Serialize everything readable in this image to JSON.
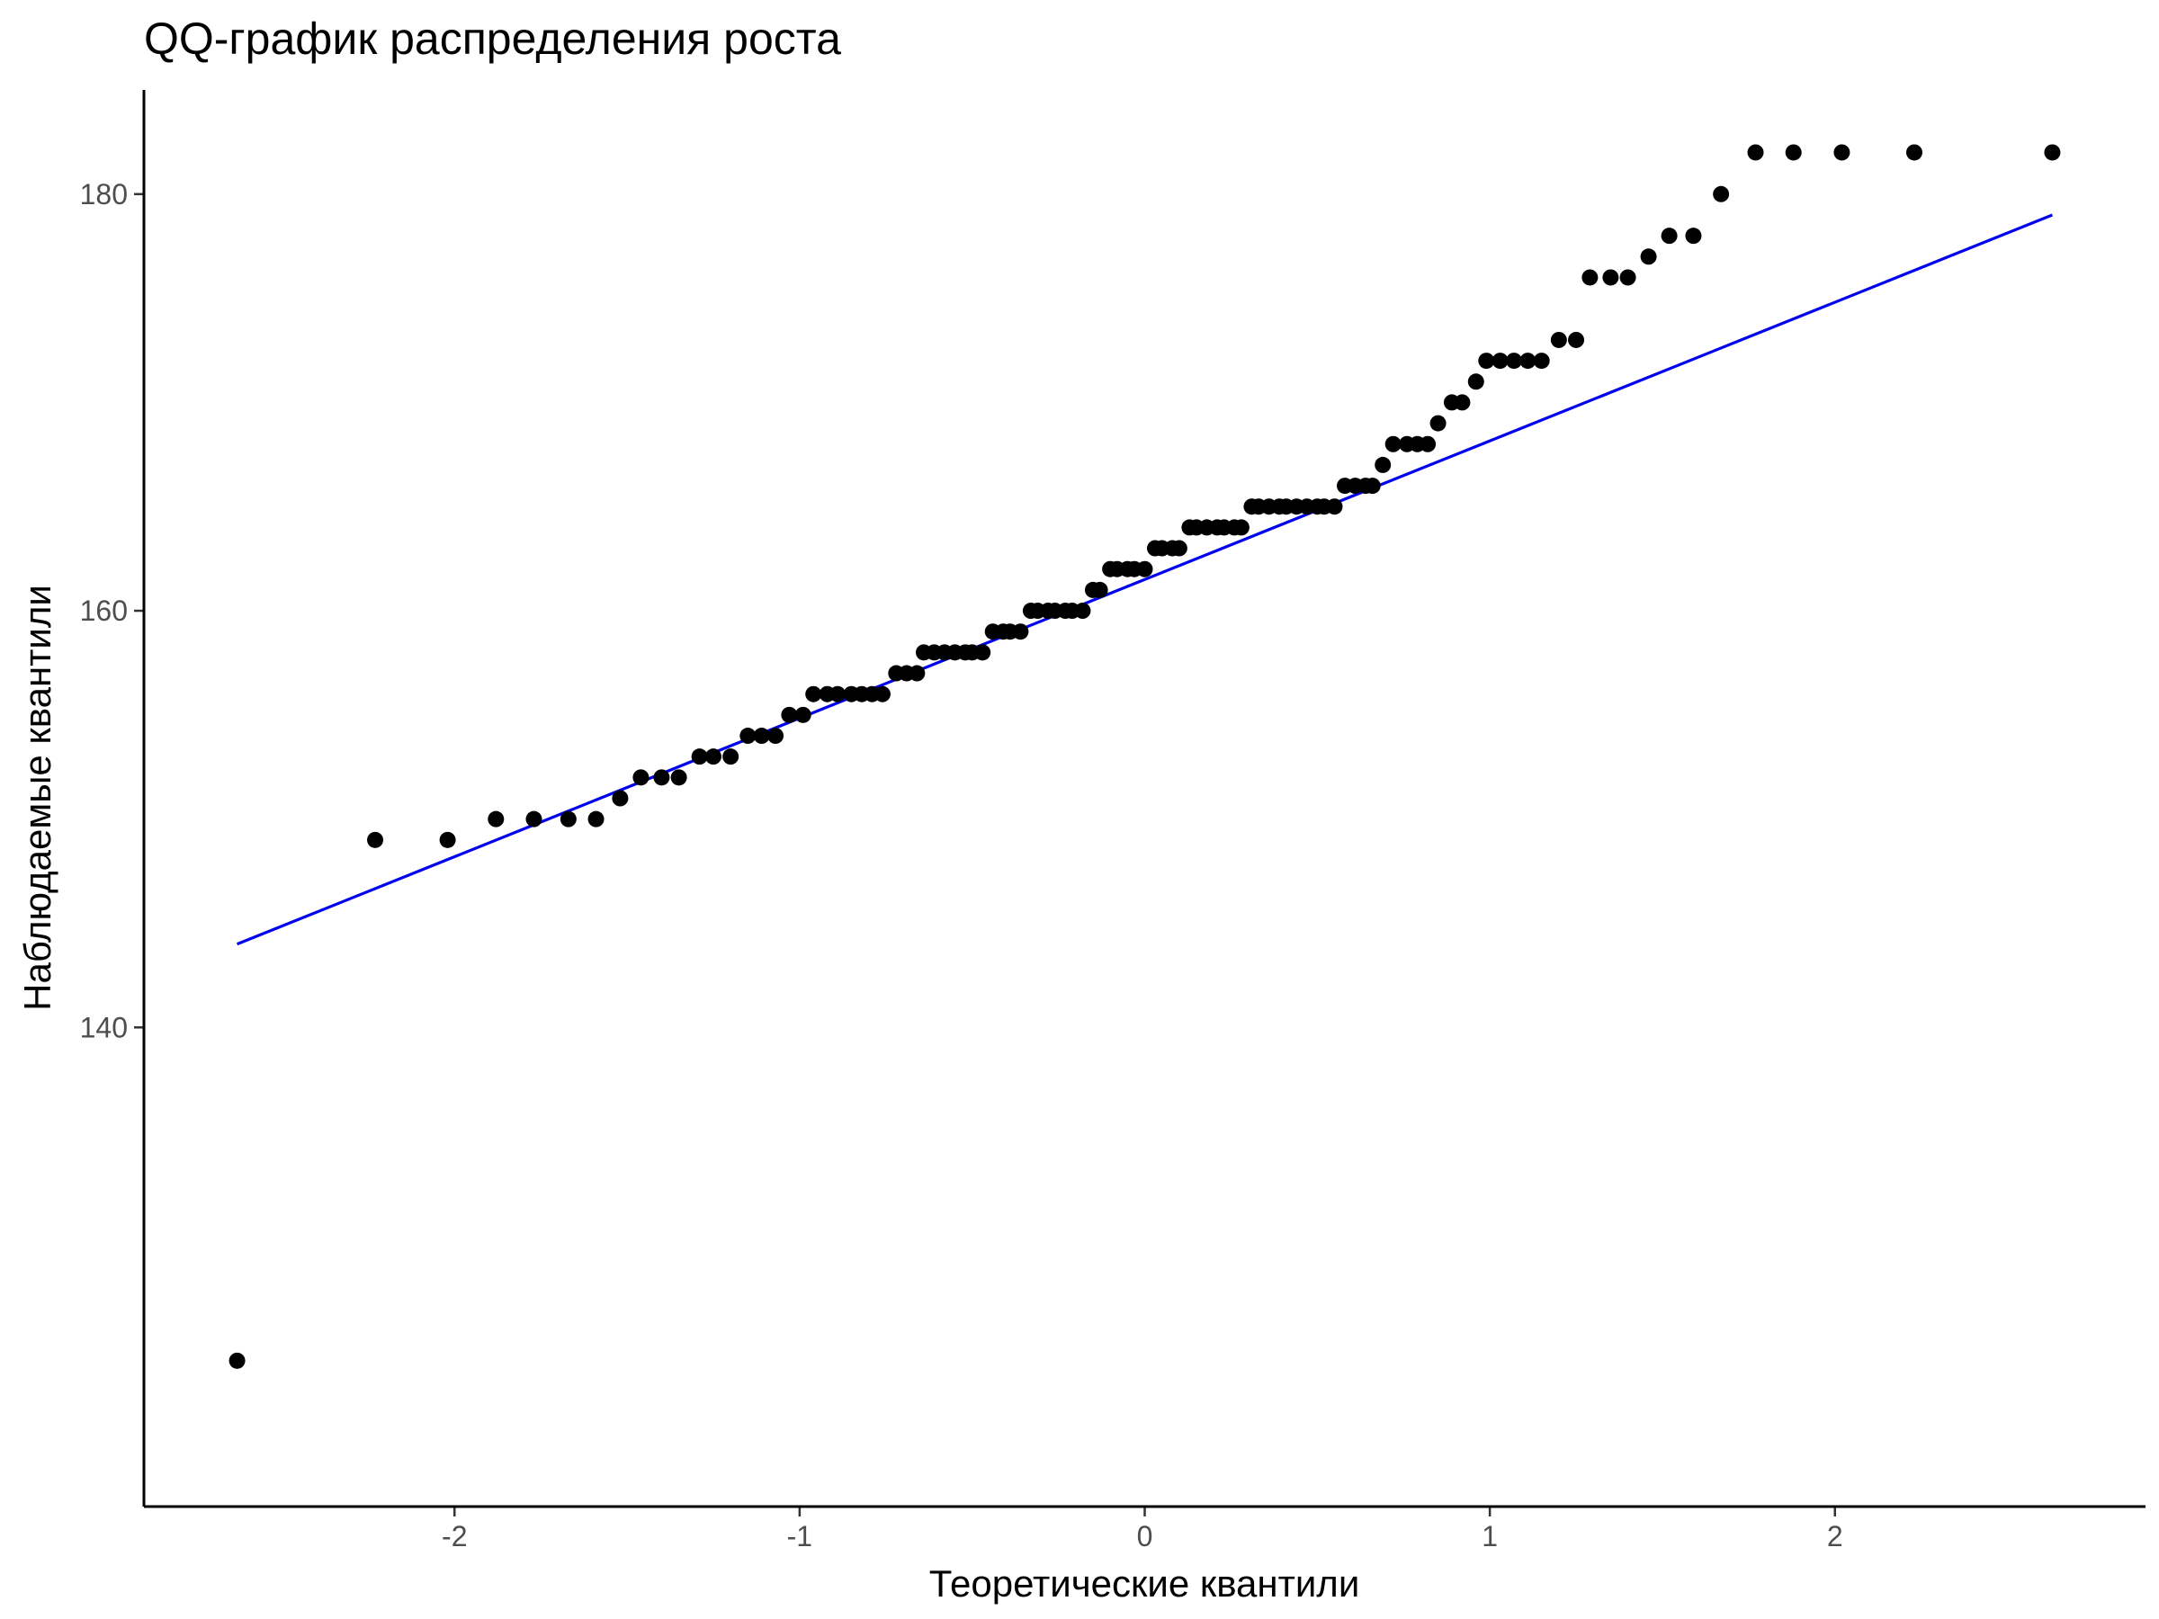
{
  "chart_data": {
    "type": "scatter",
    "title": "QQ-график распределения роста",
    "xlabel": "Теоретические квантили",
    "ylabel": "Наблюдаемые квантили",
    "xlim": [
      -2.9,
      2.9
    ],
    "ylim": [
      117,
      185
    ],
    "x_ticks": [
      -2,
      -1,
      0,
      1,
      2
    ],
    "x_tick_labels": [
      "-2",
      "-1",
      "0",
      "1",
      "2"
    ],
    "y_ticks": [
      140,
      160,
      180
    ],
    "y_tick_labels": [
      "140",
      "160",
      "180"
    ],
    "grid": false,
    "reference_line": {
      "x": [
        -2.63,
        2.63
      ],
      "y": [
        144.0,
        179.0
      ],
      "color": "#0000ee"
    },
    "series": [
      {
        "points": [
          [
            -2.63,
            124
          ],
          [
            -2.23,
            149
          ],
          [
            -2.02,
            149
          ],
          [
            -1.88,
            150
          ],
          [
            -1.77,
            150
          ],
          [
            -1.67,
            150
          ],
          [
            -1.59,
            150
          ],
          [
            -1.52,
            151
          ],
          [
            -1.46,
            152
          ],
          [
            -1.4,
            152
          ],
          [
            -1.35,
            152
          ],
          [
            -1.29,
            153
          ],
          [
            -1.25,
            153
          ],
          [
            -1.2,
            153
          ],
          [
            -1.15,
            154
          ],
          [
            -1.11,
            154
          ],
          [
            -1.07,
            154
          ],
          [
            -1.03,
            155
          ],
          [
            -0.99,
            155
          ],
          [
            -0.96,
            156
          ],
          [
            -0.92,
            156
          ],
          [
            -0.89,
            156
          ],
          [
            -0.85,
            156
          ],
          [
            -0.82,
            156
          ],
          [
            -0.79,
            156
          ],
          [
            -0.76,
            156
          ],
          [
            -0.72,
            157
          ],
          [
            -0.69,
            157
          ],
          [
            -0.66,
            157
          ],
          [
            -0.64,
            158
          ],
          [
            -0.61,
            158
          ],
          [
            -0.58,
            158
          ],
          [
            -0.55,
            158
          ],
          [
            -0.52,
            158
          ],
          [
            -0.5,
            158
          ],
          [
            -0.47,
            158
          ],
          [
            -0.44,
            159
          ],
          [
            -0.41,
            159
          ],
          [
            -0.39,
            159
          ],
          [
            -0.36,
            159
          ],
          [
            -0.33,
            160
          ],
          [
            -0.31,
            160
          ],
          [
            -0.28,
            160
          ],
          [
            -0.26,
            160
          ],
          [
            -0.23,
            160
          ],
          [
            -0.21,
            160
          ],
          [
            -0.18,
            160
          ],
          [
            -0.15,
            161
          ],
          [
            -0.13,
            161
          ],
          [
            -0.1,
            162
          ],
          [
            -0.08,
            162
          ],
          [
            -0.05,
            162
          ],
          [
            -0.03,
            162
          ],
          [
            0.0,
            162
          ],
          [
            0.03,
            163
          ],
          [
            0.05,
            163
          ],
          [
            0.08,
            163
          ],
          [
            0.1,
            163
          ],
          [
            0.13,
            164
          ],
          [
            0.15,
            164
          ],
          [
            0.18,
            164
          ],
          [
            0.21,
            164
          ],
          [
            0.23,
            164
          ],
          [
            0.26,
            164
          ],
          [
            0.28,
            164
          ],
          [
            0.31,
            165
          ],
          [
            0.33,
            165
          ],
          [
            0.36,
            165
          ],
          [
            0.39,
            165
          ],
          [
            0.41,
            165
          ],
          [
            0.44,
            165
          ],
          [
            0.47,
            165
          ],
          [
            0.5,
            165
          ],
          [
            0.52,
            165
          ],
          [
            0.55,
            165
          ],
          [
            0.58,
            166
          ],
          [
            0.61,
            166
          ],
          [
            0.64,
            166
          ],
          [
            0.66,
            166
          ],
          [
            0.69,
            167
          ],
          [
            0.72,
            168
          ],
          [
            0.76,
            168
          ],
          [
            0.79,
            168
          ],
          [
            0.82,
            168
          ],
          [
            0.85,
            169
          ],
          [
            0.89,
            170
          ],
          [
            0.92,
            170
          ],
          [
            0.96,
            171
          ],
          [
            0.99,
            172
          ],
          [
            1.03,
            172
          ],
          [
            1.07,
            172
          ],
          [
            1.11,
            172
          ],
          [
            1.15,
            172
          ],
          [
            1.2,
            173
          ],
          [
            1.25,
            173
          ],
          [
            1.29,
            176
          ],
          [
            1.35,
            176
          ],
          [
            1.4,
            176
          ],
          [
            1.46,
            177
          ],
          [
            1.52,
            178
          ],
          [
            1.59,
            178
          ],
          [
            1.67,
            180
          ],
          [
            1.77,
            182
          ],
          [
            1.88,
            182
          ],
          [
            2.02,
            182
          ],
          [
            2.23,
            182
          ],
          [
            2.63,
            182
          ]
        ]
      }
    ]
  }
}
